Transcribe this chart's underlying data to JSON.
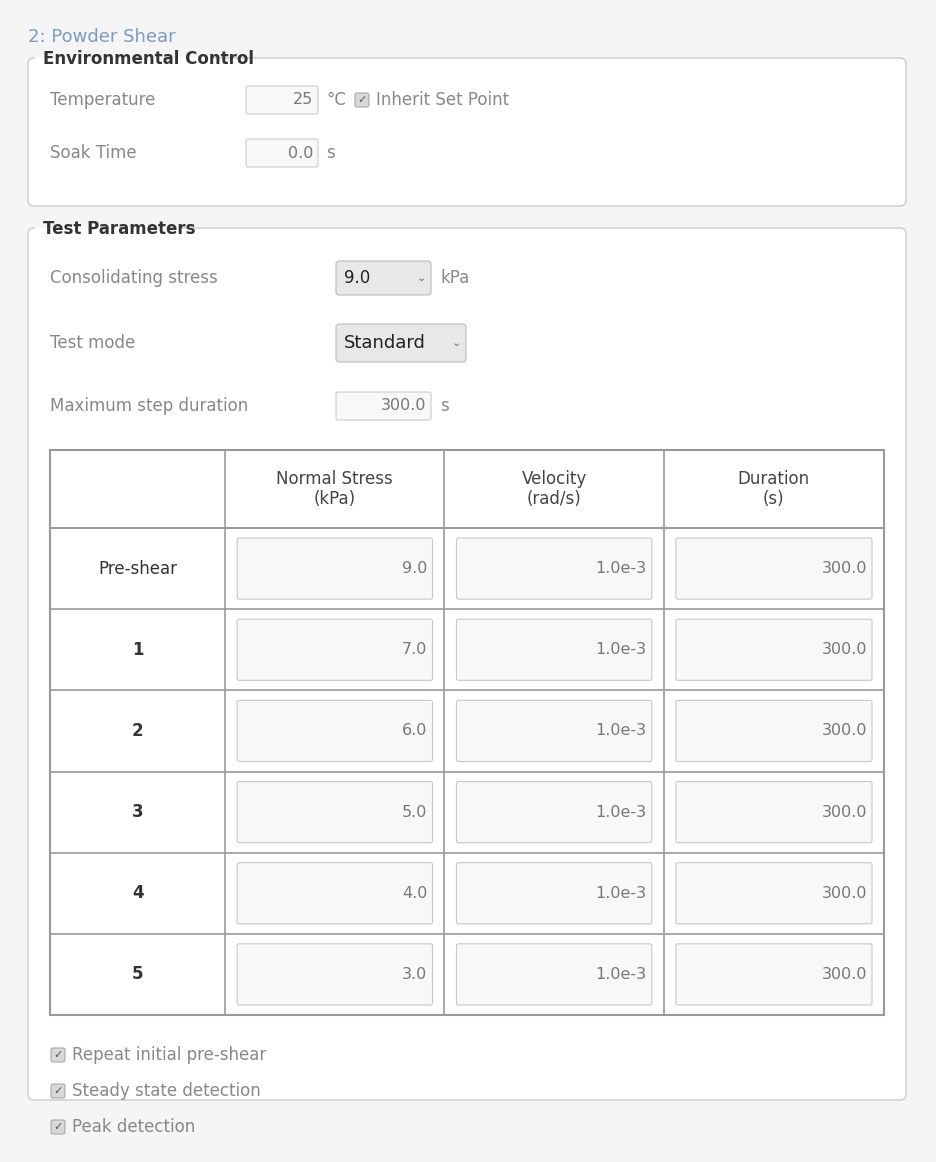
{
  "title": "2: Powder Shear",
  "title_color": "#7b9bbf",
  "bg_color": "#f5f5f5",
  "section1_title": "Environmental Control",
  "section2_title": "Test Parameters",
  "temp_label": "Temperature",
  "temp_value": "25",
  "temp_unit": "°C",
  "inherit_label": "Inherit Set Point",
  "soak_label": "Soak Time",
  "soak_value": "0.0",
  "soak_unit": "s",
  "consol_label": "Consolidating stress",
  "consol_value": "9.0",
  "consol_unit": "kPa",
  "testmode_label": "Test mode",
  "testmode_value": "Standard",
  "maxstep_label": "Maximum step duration",
  "maxstep_value": "300.0",
  "maxstep_unit": "s",
  "table_headers": [
    "",
    "Normal Stress\n(kPa)",
    "Velocity\n(rad/s)",
    "Duration\n(s)"
  ],
  "table_rows": [
    [
      "Pre-shear",
      "9.0",
      "1.0e-3",
      "300.0"
    ],
    [
      "1",
      "7.0",
      "1.0e-3",
      "300.0"
    ],
    [
      "2",
      "6.0",
      "1.0e-3",
      "300.0"
    ],
    [
      "3",
      "5.0",
      "1.0e-3",
      "300.0"
    ],
    [
      "4",
      "4.0",
      "1.0e-3",
      "300.0"
    ],
    [
      "5",
      "3.0",
      "1.0e-3",
      "300.0"
    ]
  ],
  "checkboxes": [
    "Repeat initial pre-shear",
    "Steady state detection",
    "Peak detection"
  ],
  "label_color": "#888888",
  "value_color": "#777777",
  "header_color": "#444444",
  "row_label_color": "#333333",
  "box_bg": "#f8f8f8",
  "box_border": "#cccccc",
  "table_border": "#999999",
  "section_border": "#cccccc",
  "section_title_color": "#333333",
  "section_bg": "#ffffff",
  "dropdown_bg": "#e8e8e8",
  "dropdown_border": "#bbbbbb",
  "checkbox_bg": "#d8d8d8",
  "checkbox_border": "#aaaaaa"
}
